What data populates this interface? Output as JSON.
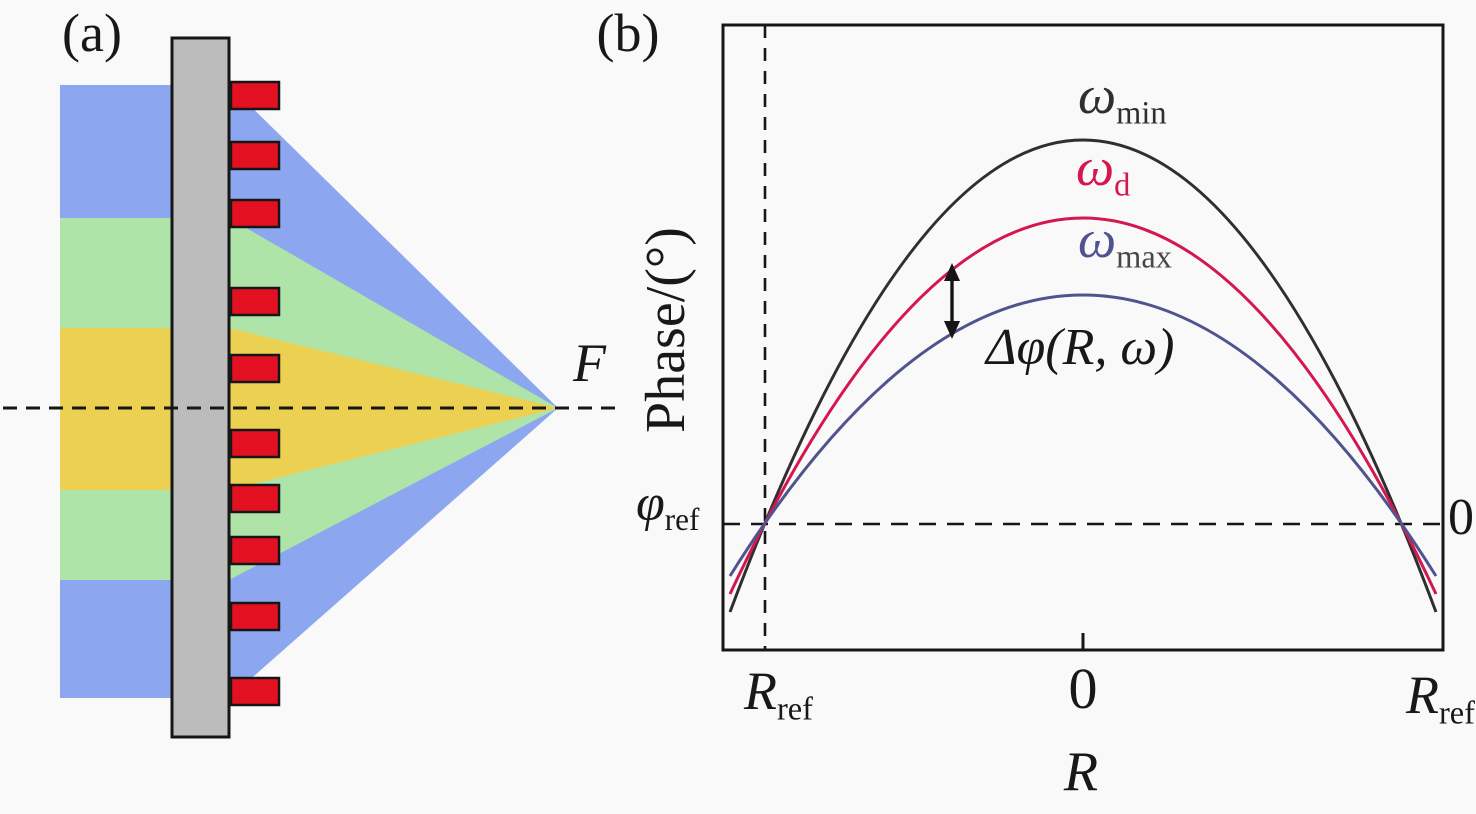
{
  "figure": {
    "background": "#f9f9f9",
    "panel_a": {
      "label": "(a)",
      "focal_point_label": "F",
      "colors": {
        "beam_wide": "#8ca7f0",
        "beam_mid": "#aee4a8",
        "beam_narrow": "#ecd052",
        "lens_bar": "#bcbcbc",
        "element_fill": "#e31021",
        "outline": "#161616"
      },
      "element_count": 10,
      "element_y_tops": [
        82,
        142,
        200,
        288,
        355,
        430,
        485,
        537,
        603,
        678
      ]
    },
    "panel_b": {
      "label": "(b)",
      "ylabel": "Phase/(°)",
      "xlabel": "R",
      "y_ref_tick": {
        "main": "φ",
        "sub": "ref"
      },
      "right_zero_label": "0",
      "x_ticks": [
        {
          "main": "R",
          "sub": "ref"
        },
        {
          "main": "0",
          "sub": ""
        },
        {
          "main": "R",
          "sub": "ref"
        }
      ],
      "annotation": {
        "text": "Δφ(R, ω)"
      },
      "curves": [
        {
          "id": "omega-min",
          "label_main": "ω",
          "label_sub": "min",
          "color": "#2f2f2f",
          "sub_color": "#2f2f2f"
        },
        {
          "id": "omega-d",
          "label_main": "ω",
          "label_sub": "d",
          "color": "#d4174f",
          "sub_color": "#d4174f"
        },
        {
          "id": "omega-max",
          "label_main": "ω",
          "label_sub": "max",
          "color": "#4f548e",
          "sub_color": "#474747"
        }
      ]
    }
  },
  "chart_data": {
    "type": "line",
    "title": "",
    "xlabel": "R",
    "ylabel": "Phase/(°)",
    "x_tick_labels": [
      "R_ref",
      "0",
      "R_ref"
    ],
    "y_tick_labels": [
      "φ_ref"
    ],
    "qualitative": true,
    "grid": false,
    "legend_position": "labels beside curves",
    "series": [
      {
        "name": "ω_min",
        "color": "#2f2f2f",
        "shape": "downward parabola",
        "x": [
          -1,
          0,
          1
        ],
        "phase_relative": [
          0,
          1.0,
          0
        ]
      },
      {
        "name": "ω_d",
        "color": "#d4174f",
        "shape": "downward parabola",
        "x": [
          -1,
          0,
          1
        ],
        "phase_relative": [
          0,
          0.8,
          0
        ]
      },
      {
        "name": "ω_max",
        "color": "#4f548e",
        "shape": "downward parabola",
        "x": [
          -1,
          0,
          1
        ],
        "phase_relative": [
          0,
          0.6,
          0
        ]
      },
      {
        "name": "reference",
        "note": "all curves intersect at x = -R_ref and x = +R_ref on the φ_ref level"
      }
    ],
    "reference_lines": [
      {
        "axis": "vertical",
        "at": "R_ref (left)",
        "style": "dashed"
      },
      {
        "axis": "horizontal",
        "at": "φ_ref",
        "style": "dashed",
        "right_end_label": "0"
      }
    ],
    "annotations": [
      {
        "text": "Δφ(R, ω)",
        "marker": "double-headed vertical arrow between ω_d and ω_max curves"
      }
    ]
  }
}
